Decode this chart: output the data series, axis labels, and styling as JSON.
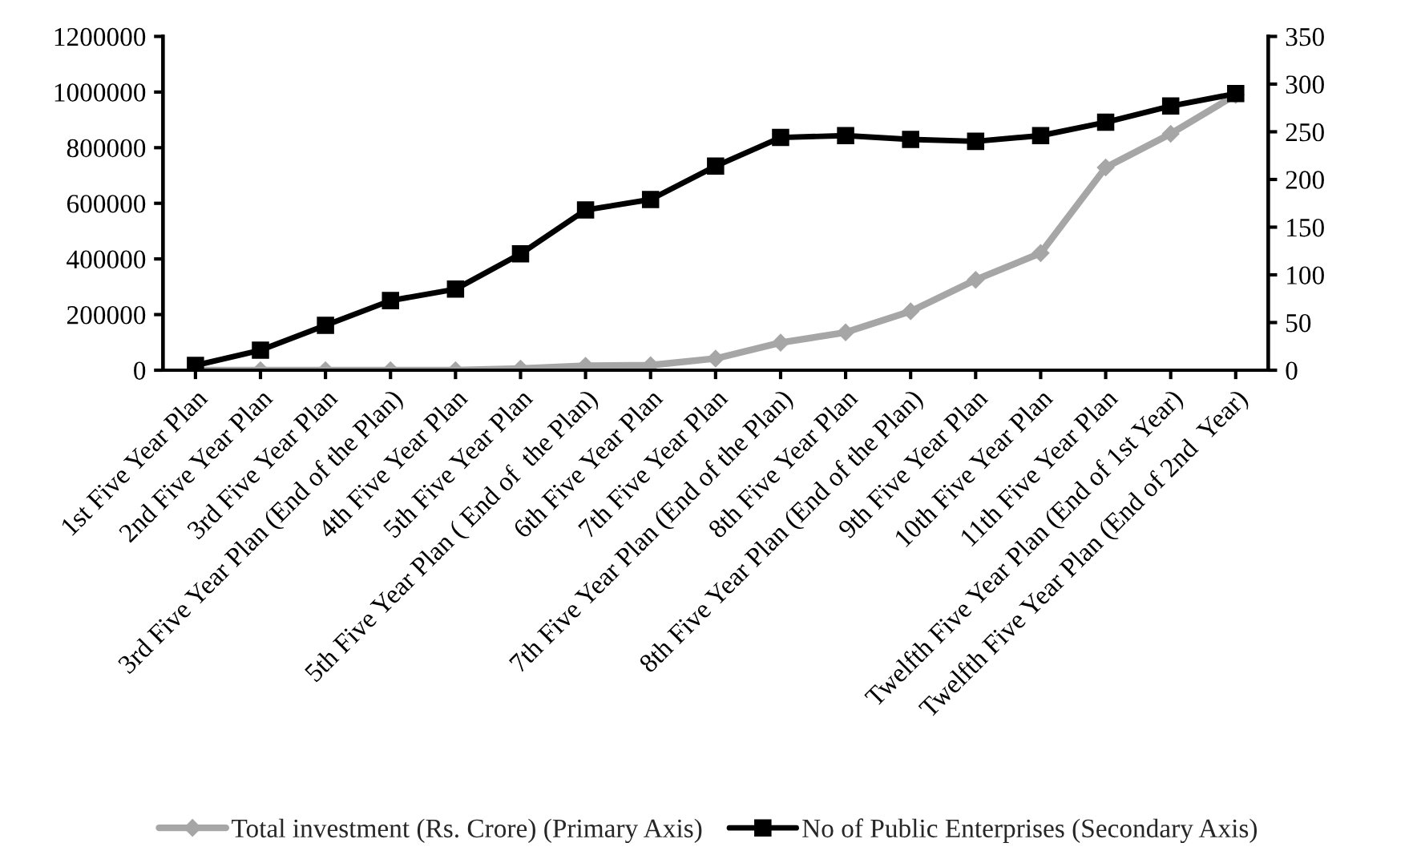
{
  "chart_data": {
    "type": "line",
    "categories": [
      "1st Five Year Plan",
      "2nd Five Year Plan",
      "3rd Five Year Plan",
      "3rd Five Year Plan (End of the Plan)",
      "4th Five Year Plan",
      "5th Five Year Plan",
      "5th Five Year Plan ( End of  the Plan)",
      "6th Five Year Plan",
      "7th Five Year Plan",
      "7th Five Year Plan (End of the Plan)",
      "8th Five Year Plan",
      "8th Five Year Plan (End of the Plan)",
      "9th Five Year Plan",
      "10th Five Year Plan",
      "11th Five Year Plan",
      "Twelfth Five Year Plan (End of 1st Year)",
      "Twelfth Five Year Plan (End of 2nd  Year)"
    ],
    "series": [
      {
        "name": "Total investment (Rs. Crore) (Primary Axis)",
        "color": "#a6a6a6",
        "marker": "diamond",
        "values": [
          0,
          0,
          0,
          0,
          0,
          6000,
          16000,
          18000,
          42000,
          99000,
          136000,
          212000,
          325000,
          421000,
          729000,
          850000,
          990000
        ]
      },
      {
        "name": "No of Public Enterprises (Secondary Axis)",
        "color": "#000000",
        "marker": "square",
        "axis": "y2",
        "values": [
          5,
          21,
          47,
          73,
          85,
          122,
          168,
          179,
          214,
          244,
          246,
          242,
          240,
          246,
          260,
          277,
          290
        ]
      }
    ],
    "ylim": [
      0,
      1200000
    ],
    "yticks": [
      0,
      200000,
      400000,
      600000,
      800000,
      1000000,
      1200000
    ],
    "y2lim": [
      0,
      350
    ],
    "y2ticks": [
      0,
      50,
      100,
      150,
      200,
      250,
      300,
      350
    ],
    "grid": false,
    "legend": "bottom"
  }
}
